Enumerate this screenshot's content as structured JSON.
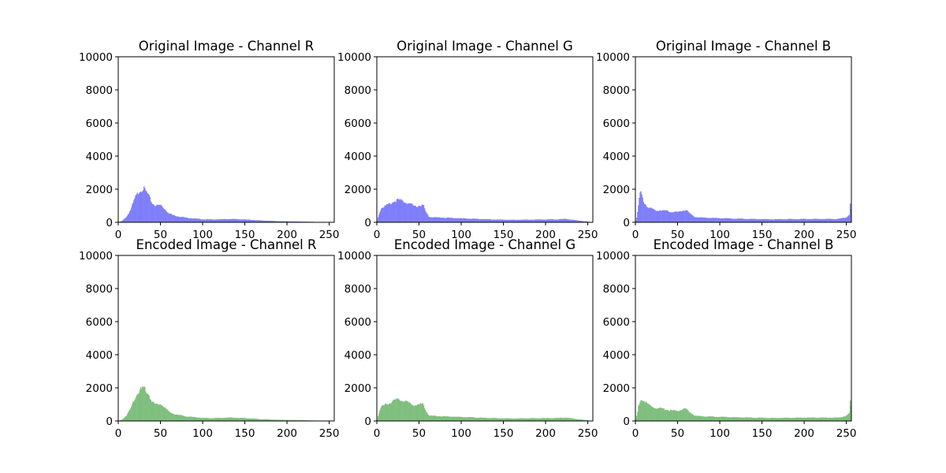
{
  "chart_data": [
    {
      "type": "histogram",
      "title": "Original Image - Channel R",
      "color": "#7f7ffb",
      "xlim": [
        0,
        256
      ],
      "ylim": [
        0,
        10000
      ],
      "xticks": [
        "0",
        "50",
        "100",
        "150",
        "200",
        "250"
      ],
      "yticks": [
        "0",
        "2000",
        "4000",
        "6000",
        "8000",
        "10000"
      ],
      "x": [
        0,
        5,
        10,
        15,
        20,
        25,
        30,
        35,
        40,
        45,
        50,
        55,
        60,
        65,
        70,
        75,
        80,
        90,
        100,
        110,
        120,
        130,
        140,
        150,
        160,
        170,
        180,
        190,
        200,
        210,
        220,
        230,
        240,
        245,
        256
      ],
      "y": [
        0,
        100,
        350,
        800,
        1500,
        1900,
        2050,
        1700,
        1150,
        1000,
        1050,
        800,
        550,
        430,
        370,
        330,
        280,
        230,
        180,
        170,
        180,
        200,
        190,
        170,
        140,
        110,
        90,
        70,
        60,
        50,
        40,
        30,
        10,
        0,
        0
      ]
    },
    {
      "type": "histogram",
      "title": "Original Image - Channel G",
      "color": "#7f7ffb",
      "xlim": [
        0,
        256
      ],
      "ylim": [
        0,
        10000
      ],
      "xticks": [
        "0",
        "50",
        "100",
        "150",
        "200",
        "250"
      ],
      "yticks": [
        "0",
        "2000",
        "4000",
        "6000",
        "8000",
        "10000"
      ],
      "x": [
        0,
        2,
        5,
        10,
        15,
        20,
        25,
        30,
        35,
        40,
        45,
        50,
        55,
        58,
        62,
        70,
        80,
        90,
        100,
        120,
        140,
        160,
        180,
        200,
        215,
        225,
        230,
        240,
        250,
        256
      ],
      "y": [
        0,
        400,
        850,
        1000,
        1100,
        1250,
        1350,
        1300,
        1200,
        1100,
        950,
        1000,
        1050,
        600,
        320,
        300,
        280,
        260,
        240,
        200,
        170,
        150,
        160,
        170,
        180,
        200,
        160,
        100,
        40,
        0
      ]
    },
    {
      "type": "histogram",
      "title": "Original Image - Channel B",
      "color": "#7f7ffb",
      "xlim": [
        0,
        256
      ],
      "ylim": [
        0,
        10000
      ],
      "xticks": [
        "0",
        "50",
        "100",
        "150",
        "200",
        "250"
      ],
      "yticks": [
        "0",
        "2000",
        "4000",
        "6000",
        "8000",
        "10000"
      ],
      "x": [
        0,
        2,
        4,
        6,
        8,
        10,
        15,
        20,
        25,
        30,
        40,
        50,
        55,
        60,
        65,
        70,
        80,
        100,
        120,
        140,
        160,
        180,
        200,
        220,
        240,
        250,
        254,
        255,
        256
      ],
      "y": [
        0,
        400,
        1200,
        1900,
        1500,
        1200,
        900,
        800,
        700,
        750,
        650,
        600,
        700,
        750,
        500,
        320,
        280,
        250,
        220,
        200,
        180,
        190,
        200,
        200,
        200,
        300,
        500,
        1600,
        0
      ]
    },
    {
      "type": "histogram",
      "title": "Encoded Image - Channel R",
      "color": "#7fbf7f",
      "xlim": [
        0,
        256
      ],
      "ylim": [
        0,
        10000
      ],
      "xticks": [
        "0",
        "50",
        "100",
        "150",
        "200",
        "250"
      ],
      "yticks": [
        "0",
        "2000",
        "4000",
        "6000",
        "8000",
        "10000"
      ],
      "x": [
        0,
        5,
        10,
        15,
        20,
        25,
        30,
        35,
        40,
        45,
        50,
        55,
        60,
        65,
        70,
        75,
        80,
        90,
        100,
        110,
        120,
        130,
        140,
        150,
        160,
        170,
        180,
        190,
        200,
        210,
        220,
        230,
        240,
        245,
        256
      ],
      "y": [
        0,
        100,
        350,
        800,
        1450,
        1850,
        2000,
        1700,
        1150,
        1000,
        1050,
        800,
        550,
        430,
        370,
        330,
        280,
        230,
        180,
        170,
        180,
        200,
        190,
        170,
        140,
        110,
        90,
        70,
        60,
        50,
        40,
        30,
        10,
        0,
        0
      ]
    },
    {
      "type": "histogram",
      "title": "Encoded Image - Channel G",
      "color": "#7fbf7f",
      "xlim": [
        0,
        256
      ],
      "ylim": [
        0,
        10000
      ],
      "xticks": [
        "0",
        "50",
        "100",
        "150",
        "200",
        "250"
      ],
      "yticks": [
        "0",
        "2000",
        "4000",
        "6000",
        "8000",
        "10000"
      ],
      "x": [
        0,
        2,
        5,
        10,
        15,
        20,
        25,
        30,
        35,
        40,
        45,
        50,
        55,
        58,
        62,
        70,
        80,
        90,
        100,
        120,
        140,
        160,
        180,
        200,
        215,
        225,
        230,
        240,
        250,
        256
      ],
      "y": [
        0,
        400,
        850,
        1000,
        1100,
        1200,
        1300,
        1250,
        1150,
        1050,
        950,
        1000,
        1050,
        600,
        320,
        300,
        280,
        260,
        240,
        200,
        170,
        150,
        160,
        170,
        180,
        200,
        160,
        100,
        40,
        0
      ]
    },
    {
      "type": "histogram",
      "title": "Encoded Image - Channel B",
      "color": "#7fbf7f",
      "xlim": [
        0,
        256
      ],
      "ylim": [
        0,
        10000
      ],
      "xticks": [
        "0",
        "50",
        "100",
        "150",
        "200",
        "250"
      ],
      "yticks": [
        "0",
        "2000",
        "4000",
        "6000",
        "8000",
        "10000"
      ],
      "x": [
        0,
        2,
        4,
        6,
        8,
        10,
        15,
        20,
        25,
        30,
        40,
        50,
        55,
        60,
        65,
        70,
        80,
        100,
        120,
        140,
        160,
        180,
        200,
        220,
        240,
        250,
        254,
        255,
        256
      ],
      "y": [
        0,
        400,
        1000,
        1300,
        1250,
        1200,
        1000,
        850,
        750,
        750,
        650,
        600,
        700,
        750,
        500,
        320,
        280,
        250,
        220,
        200,
        180,
        190,
        200,
        200,
        200,
        300,
        500,
        1800,
        0
      ]
    }
  ]
}
